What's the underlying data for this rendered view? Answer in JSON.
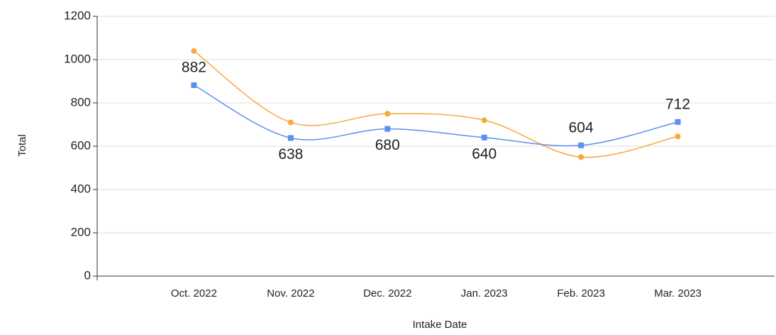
{
  "chart_data": {
    "type": "line",
    "x_label": "Intake Date",
    "y_label": "Total",
    "categories": [
      "Oct. 2022",
      "Nov. 2022",
      "Dec. 2022",
      "Jan. 2023",
      "Feb. 2023",
      "Mar. 2023"
    ],
    "series": [
      {
        "color": "#5b8ff0",
        "marker": "square",
        "values": [
          882,
          638,
          680,
          640,
          604,
          712
        ],
        "show_labels": true
      },
      {
        "color": "#f7a93b",
        "marker": "circle",
        "values": [
          1040,
          710,
          750,
          720,
          550,
          645
        ],
        "show_labels": false
      }
    ],
    "ylim": [
      0,
      1200
    ],
    "yticks": [
      0,
      200,
      400,
      600,
      800,
      1000,
      1200
    ],
    "grid": true,
    "smooth": true
  }
}
